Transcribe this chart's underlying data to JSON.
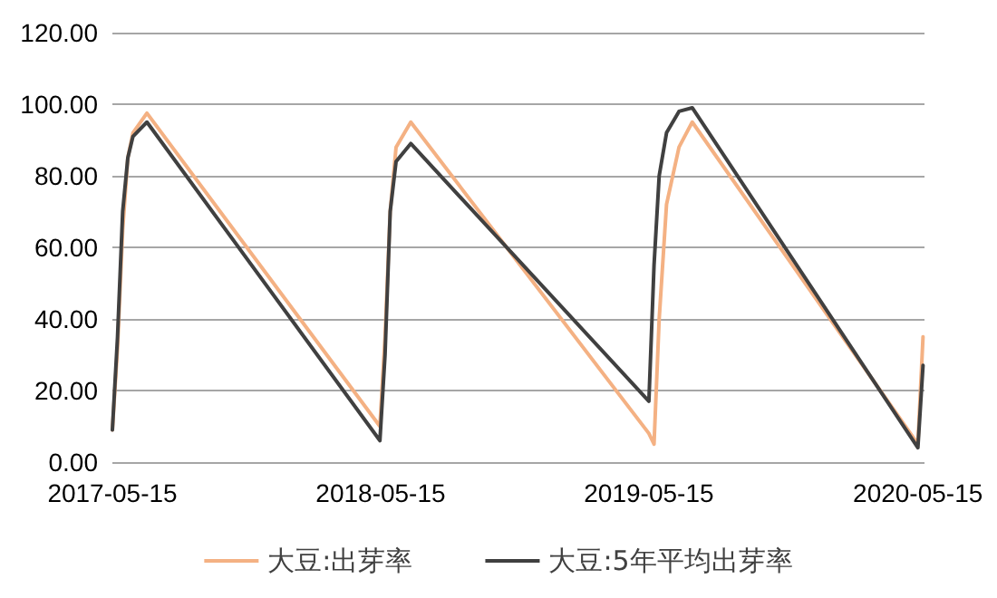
{
  "chart_data": {
    "type": "line",
    "x": [
      "2017-05-15",
      "2017-05-22",
      "2017-05-29",
      "2017-06-05",
      "2017-06-12",
      "2017-07-01",
      "2018-05-14",
      "2018-05-21",
      "2018-05-28",
      "2018-06-05",
      "2018-06-25",
      "2019-05-15",
      "2019-05-22",
      "2019-05-29",
      "2019-06-08",
      "2019-06-25",
      "2019-07-13",
      "2020-05-15",
      "2020-05-22"
    ],
    "series": [
      {
        "name": "大豆:出芽率",
        "color": "#f4b183",
        "values": [
          9,
          32,
          65,
          85,
          92,
          97.5,
          10,
          35,
          70,
          88,
          95,
          8,
          5,
          40,
          72,
          88,
          95,
          5,
          35
        ]
      },
      {
        "name": "大豆:5年平均出芽率",
        "color": "#404040",
        "values": [
          9,
          35,
          70,
          85,
          91,
          95,
          6,
          30,
          70,
          84,
          89,
          17,
          55,
          80,
          92,
          98,
          99,
          4,
          27
        ]
      }
    ],
    "xlim": [
      "2017-05-15",
      "2020-05-24"
    ],
    "xticks": [
      "2017-05-15",
      "2018-05-15",
      "2019-05-15",
      "2020-05-15"
    ],
    "ylim": [
      0,
      120
    ],
    "yticks": [
      {
        "value": 0,
        "label": "0.00"
      },
      {
        "value": 20,
        "label": "20.00"
      },
      {
        "value": 40,
        "label": "40.00"
      },
      {
        "value": 60,
        "label": "60.00"
      },
      {
        "value": 80,
        "label": "80.00"
      },
      {
        "value": 100,
        "label": "100.00"
      },
      {
        "value": 120,
        "label": "120.00"
      }
    ],
    "grid": "y",
    "legend": "bottom",
    "marker": "none",
    "line_style": "solid"
  }
}
